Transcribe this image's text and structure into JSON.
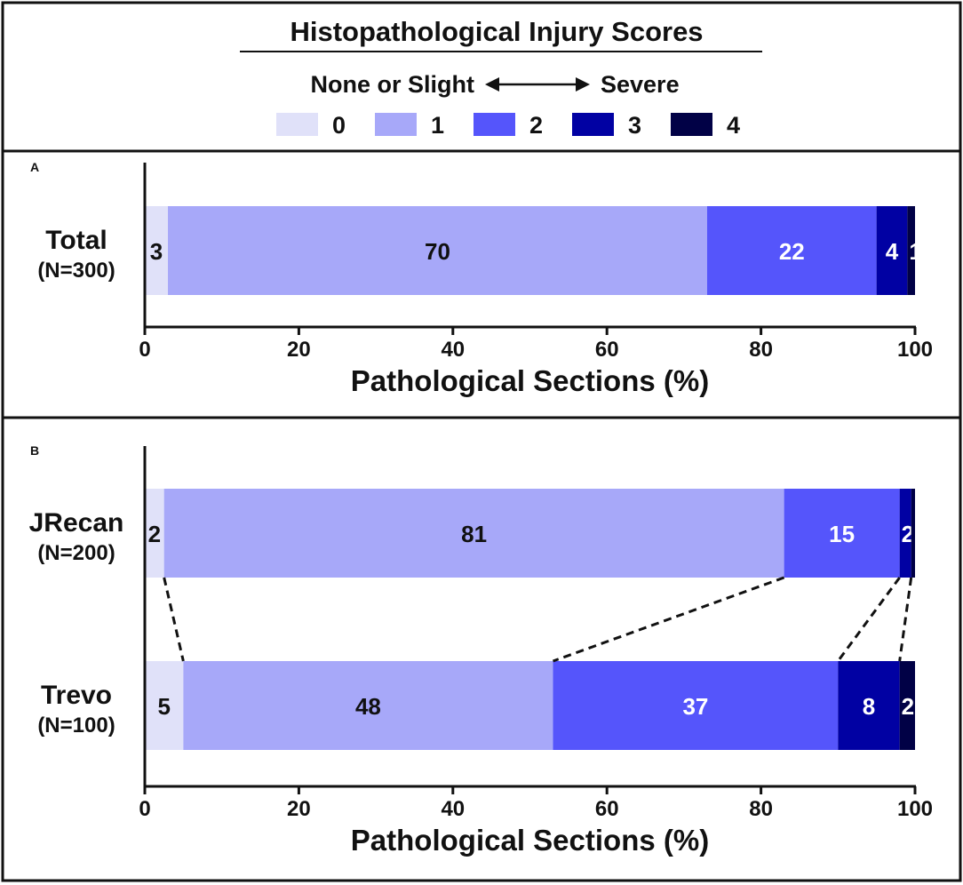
{
  "legend": {
    "title": "Histopathological Injury Scores",
    "left_label": "None or Slight",
    "right_label": "Severe",
    "score_labels": [
      "0",
      "1",
      "2",
      "3",
      "4"
    ]
  },
  "colors": [
    "#e0e1f9",
    "#a7a8f9",
    "#5555fb",
    "#0101a3",
    "#010146"
  ],
  "chart_data": [
    {
      "type": "bar",
      "stacked": true,
      "orientation": "horizontal",
      "panel": "A",
      "xlabel": "Pathological Sections (%)",
      "xlim": [
        0,
        100
      ],
      "xticks": [
        "0",
        "20",
        "40",
        "60",
        "80",
        "100"
      ],
      "legend_position": "top",
      "categories": [
        {
          "name": "Total",
          "n": "(N=300)",
          "values": [
            3,
            70,
            22,
            4,
            1
          ],
          "labels": [
            "3",
            "70",
            "22",
            "4",
            "1"
          ]
        }
      ]
    },
    {
      "type": "bar",
      "stacked": true,
      "orientation": "horizontal",
      "panel": "B",
      "xlabel": "Pathological Sections (%)",
      "xlim": [
        0,
        100
      ],
      "xticks": [
        "0",
        "20",
        "40",
        "60",
        "80",
        "100"
      ],
      "legend_position": "top",
      "categories": [
        {
          "name": "JRecan",
          "n": "(N=200)",
          "values": [
            2.5,
            80.5,
            15,
            1.5,
            0.5
          ],
          "labels": [
            "2",
            "81",
            "15",
            "2",
            ""
          ]
        },
        {
          "name": "Trevo",
          "n": "(N=100)",
          "values": [
            5,
            48,
            37,
            8,
            2
          ],
          "labels": [
            "5",
            "48",
            "37",
            "8",
            "2"
          ]
        }
      ]
    }
  ]
}
